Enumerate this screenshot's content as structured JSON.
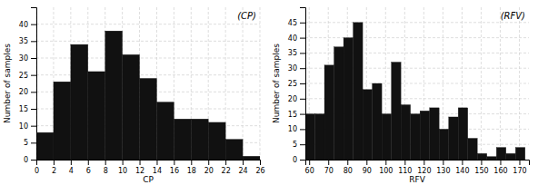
{
  "chart_data": [
    {
      "type": "histogram",
      "xlabel": "CP",
      "ylabel": "Number of samples",
      "annotation": "(CP)",
      "bins": [
        0,
        2,
        4,
        6,
        8,
        10,
        12,
        14,
        16,
        18,
        20,
        22,
        24,
        26
      ],
      "values": [
        8,
        23,
        34,
        26,
        38,
        31,
        24,
        17,
        12,
        12,
        11,
        6,
        1
      ],
      "color": "#111111",
      "xlim": [
        0,
        26
      ],
      "ylim": [
        0,
        45
      ],
      "xticks": [
        0,
        2,
        4,
        6,
        8,
        10,
        12,
        14,
        16,
        18,
        20,
        22,
        24,
        26
      ],
      "yticks": [
        0,
        5,
        10,
        15,
        20,
        25,
        30,
        35,
        40
      ],
      "grid": true
    },
    {
      "type": "histogram",
      "xlabel": "RFV",
      "ylabel": "Number of samples",
      "annotation": "(RFV)",
      "bins": [
        58,
        63,
        68,
        73,
        78,
        83,
        88,
        93,
        98,
        103,
        108,
        113,
        118,
        123,
        128,
        133,
        138,
        143,
        148,
        153,
        158,
        163,
        168,
        173
      ],
      "values": [
        15,
        15,
        31,
        37,
        40,
        45,
        23,
        25,
        15,
        32,
        18,
        15,
        16,
        17,
        10,
        14,
        17,
        7,
        2,
        1,
        4,
        2,
        4
      ],
      "color": "#111111",
      "xlim": [
        58,
        175
      ],
      "ylim": [
        0,
        50
      ],
      "xticks": [
        60,
        70,
        80,
        90,
        100,
        110,
        120,
        130,
        140,
        150,
        160,
        170
      ],
      "yticks": [
        0,
        5,
        10,
        15,
        20,
        25,
        30,
        35,
        40,
        45
      ],
      "grid": true
    }
  ]
}
